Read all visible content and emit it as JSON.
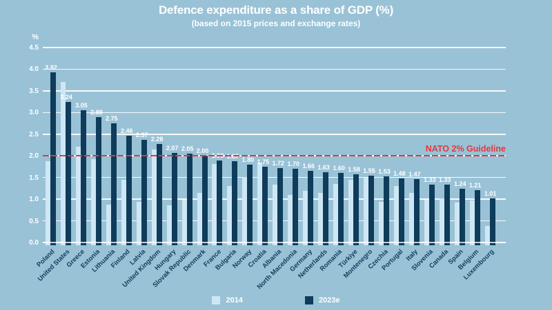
{
  "chart_data": {
    "type": "bar",
    "title": "Defence expenditure as a share of GDP (%)",
    "subtitle": "(based on 2015 prices and exchange rates)",
    "ylabel": "%",
    "ylim": [
      0,
      4.5
    ],
    "yticks": [
      0.0,
      0.5,
      1.0,
      1.5,
      2.0,
      2.5,
      3.0,
      3.5,
      4.0,
      4.5
    ],
    "grid": "horizontal-white",
    "legend_position": "bottom-center",
    "background_color": "#99c2d6",
    "categories": [
      "Poland",
      "United States",
      "Greece",
      "Estonia",
      "Lithuania",
      "Finland",
      "Latvia",
      "United Kingdom",
      "Hungary",
      "Slovak Republic",
      "Denmark",
      "France",
      "Bulgaria",
      "Norway",
      "Croatia",
      "Albania",
      "North Macedonia",
      "Germany",
      "Netherlands",
      "Romania",
      "Türkiye",
      "Montenegro",
      "Czechia",
      "Portugal",
      "Italy",
      "Slovenia",
      "Canada",
      "Spain",
      "Belgium",
      "Luxembourg"
    ],
    "series": [
      {
        "name": "2014",
        "color": "#cfe7f5",
        "labeled": false,
        "values": [
          1.88,
          3.71,
          2.21,
          1.93,
          0.88,
          1.45,
          0.94,
          2.14,
          0.86,
          0.99,
          1.15,
          1.82,
          1.31,
          1.51,
          1.84,
          1.34,
          1.09,
          1.19,
          1.15,
          1.35,
          1.45,
          1.5,
          0.94,
          1.31,
          1.14,
          0.98,
          1.01,
          0.92,
          0.97,
          0.38
        ]
      },
      {
        "name": "2023e",
        "color": "#0e3c5a",
        "labeled": true,
        "values": [
          3.92,
          3.24,
          3.05,
          2.89,
          2.75,
          2.46,
          2.37,
          2.28,
          2.07,
          2.05,
          2.0,
          1.9,
          1.87,
          1.8,
          1.75,
          1.72,
          1.7,
          1.66,
          1.63,
          1.6,
          1.58,
          1.55,
          1.53,
          1.48,
          1.47,
          1.33,
          1.33,
          1.24,
          1.21,
          1.01
        ]
      }
    ],
    "guideline": {
      "label": "NATO 2% Guideline",
      "value": 2.0,
      "color": "#e6373d",
      "style": "dashed"
    },
    "label_color": "#ffffff",
    "category_label_color": "#123d5c"
  }
}
